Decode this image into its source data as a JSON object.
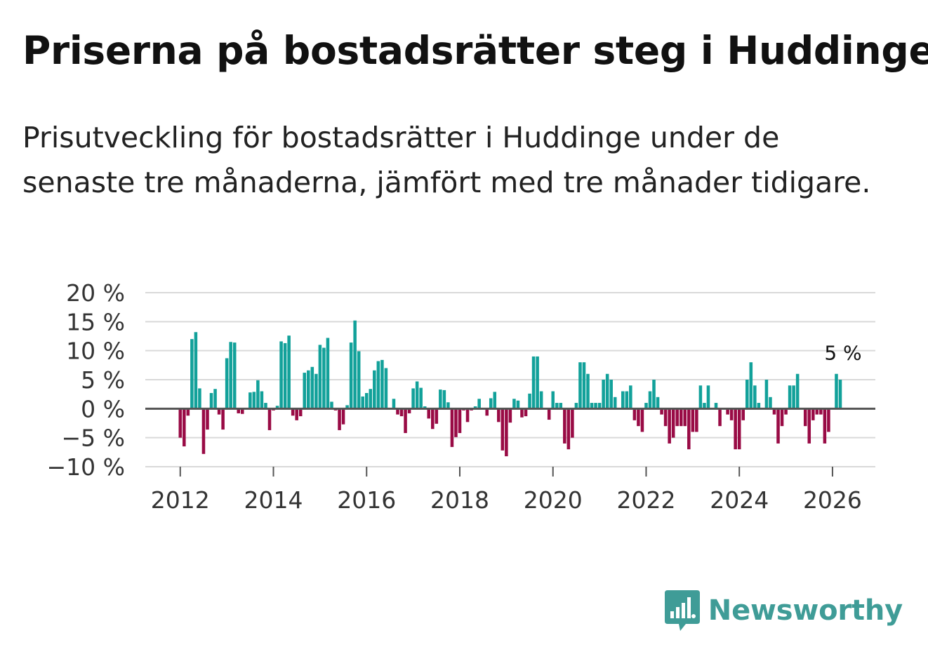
{
  "header": {
    "title": "Priserna på bostadsrätter steg i Huddinge",
    "subtitle": "Prisutveckling för bostadsrätter i Huddinge under de senaste tre månaderna, jämfört med tre månader tidigare."
  },
  "brand": {
    "name": "Newsworthy",
    "icon": "newsworthy-logo-icon"
  },
  "colors": {
    "positive": "#12a19a",
    "negative": "#990b45",
    "grid": "#d9d9d9",
    "zero": "#555555",
    "brand": "#3f9c97"
  },
  "chart_data": {
    "type": "bar",
    "title": "Priserna på bostadsrätter steg i Huddinge",
    "ylabel": "",
    "xlabel": "",
    "ylim": [
      -10,
      20
    ],
    "yticks": [
      -10,
      -5,
      0,
      5,
      10,
      15,
      20
    ],
    "ytick_labels": [
      "−10 %",
      "−5 %",
      "0 %",
      "5 %",
      "10 %",
      "15 %",
      "20 %"
    ],
    "xticks": [
      2012,
      2014,
      2016,
      2018,
      2020,
      2022,
      2024,
      2026
    ],
    "xlim": [
      2011.25,
      2026.92
    ],
    "start": {
      "year": 2012,
      "month": 1
    },
    "last_value_label": "5 %",
    "values": [
      -5,
      -6.5,
      -1.2,
      12,
      13.2,
      3.5,
      -7.8,
      -3.6,
      2.7,
      3.4,
      -1,
      -3.6,
      8.7,
      11.5,
      11.4,
      -0.8,
      -0.9,
      0,
      2.8,
      2.9,
      4.9,
      3,
      1,
      -3.7,
      -0.3,
      0.5,
      11.6,
      11.3,
      12.6,
      -1.2,
      -2,
      -1.3,
      6.2,
      6.6,
      7.2,
      6,
      11,
      10.5,
      12.2,
      1.2,
      -0.3,
      -3.7,
      -2.7,
      0.6,
      11.4,
      15.2,
      9.9,
      2.1,
      2.7,
      3.4,
      6.6,
      8.2,
      8.4,
      7,
      0,
      1.7,
      -1,
      -1.3,
      -4.2,
      -0.8,
      3.5,
      4.7,
      3.6,
      0.4,
      -1.7,
      -3.5,
      -2.6,
      3.3,
      3.2,
      1.1,
      -6.6,
      -4.9,
      -4.2,
      -0.3,
      -2.3,
      -0.3,
      0.4,
      1.7,
      0,
      -1.2,
      1.8,
      2.9,
      -2.3,
      -7.2,
      -8.2,
      -2.4,
      1.7,
      1.4,
      -1.5,
      -1.3,
      2.6,
      9,
      9,
      3,
      0,
      -1.9,
      3,
      1,
      1,
      -6,
      -7,
      -5,
      1,
      8,
      8,
      6,
      1,
      1,
      1,
      5,
      6,
      5,
      2,
      0,
      3,
      3,
      4,
      -2,
      -3,
      -4,
      1,
      3,
      5,
      2,
      -1,
      -3,
      -6,
      -5,
      -3,
      -3,
      -3,
      -7,
      -4,
      -4,
      4,
      1,
      4,
      0,
      1,
      -3,
      0,
      -1,
      -2,
      -7,
      -7,
      -2,
      5,
      8,
      4,
      1,
      0,
      5,
      2,
      -1,
      -6,
      -3,
      -1,
      4,
      4,
      6,
      0,
      -3,
      -6,
      -2,
      -1,
      -1,
      -6,
      -4,
      0,
      6,
      5
    ]
  }
}
